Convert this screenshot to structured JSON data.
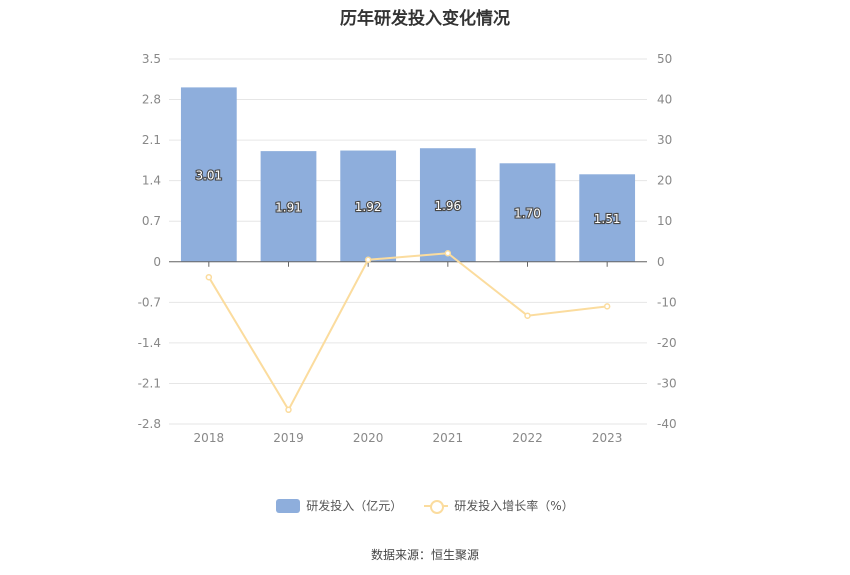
{
  "chart_data": {
    "type": "bar",
    "title": "历年研发投入变化情况",
    "categories": [
      "2018",
      "2019",
      "2020",
      "2021",
      "2022",
      "2023"
    ],
    "series": [
      {
        "name": "研发投入（亿元）",
        "type": "bar",
        "axis": "left",
        "values": [
          3.01,
          1.91,
          1.92,
          1.96,
          1.7,
          1.51
        ],
        "labels": [
          "3.01",
          "1.91",
          "1.92",
          "1.96",
          "1.70",
          "1.51"
        ],
        "color": "#8eaedc"
      },
      {
        "name": "研发投入增长率（%）",
        "type": "line",
        "axis": "right",
        "values": [
          -3.8,
          -36.5,
          0.5,
          2.1,
          -13.3,
          -11.0
        ],
        "color": "#fbdc9e"
      }
    ],
    "y_left": {
      "ylim": [
        -2.8,
        3.5
      ],
      "ticks": [
        "3.5",
        "2.8",
        "2.1",
        "1.4",
        "0.7",
        "0",
        "-0.7",
        "-1.4",
        "-2.1",
        "-2.8"
      ]
    },
    "y_right": {
      "ylim": [
        -40,
        50
      ],
      "ticks": [
        "50",
        "40",
        "30",
        "20",
        "10",
        "0",
        "-10",
        "-20",
        "-30",
        "-40"
      ]
    },
    "grid": true,
    "legend_position": "bottom"
  },
  "legend": {
    "bar_label": "研发投入（亿元）",
    "line_label": "研发投入增长率（%）"
  },
  "source": "数据来源：恒生聚源"
}
